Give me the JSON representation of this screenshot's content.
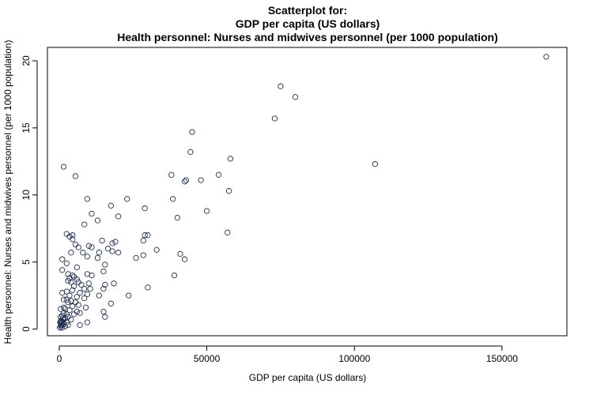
{
  "chart_data": {
    "type": "scatter",
    "title_lines": [
      "Scatterplot for:",
      "GDP per capita (US dollars)",
      "Health personnel: Nurses and midwives personnel (per 1000 population)"
    ],
    "xlabel": "GDP per capita (US dollars)",
    "ylabel": "Health personnel: Nurses and midwives personnel (per 1000 population)",
    "xlim": [
      -4000,
      172000
    ],
    "ylim": [
      -0.5,
      21
    ],
    "xticks": [
      0,
      50000,
      100000,
      150000
    ],
    "xtick_labels": [
      "0",
      "50000",
      "100000",
      "150000"
    ],
    "yticks": [
      0,
      5,
      10,
      15,
      20
    ],
    "ytick_labels": [
      "0",
      "5",
      "10",
      "15",
      "20"
    ],
    "grid": false,
    "legend": null,
    "marker_color": "#1f2f4f",
    "points": [
      [
        165000,
        20.3
      ],
      [
        75000,
        18.1
      ],
      [
        80000,
        17.3
      ],
      [
        73000,
        15.7
      ],
      [
        45000,
        14.7
      ],
      [
        44500,
        13.2
      ],
      [
        58000,
        12.7
      ],
      [
        107000,
        12.3
      ],
      [
        1500,
        12.1
      ],
      [
        54000,
        11.5
      ],
      [
        38000,
        11.5
      ],
      [
        5500,
        11.4
      ],
      [
        48000,
        11.1
      ],
      [
        43000,
        11.1
      ],
      [
        42500,
        11.0
      ],
      [
        57500,
        10.3
      ],
      [
        38500,
        9.7
      ],
      [
        23000,
        9.7
      ],
      [
        9500,
        9.7
      ],
      [
        17500,
        9.2
      ],
      [
        29000,
        9.0
      ],
      [
        50000,
        8.8
      ],
      [
        11000,
        8.6
      ],
      [
        20000,
        8.4
      ],
      [
        40000,
        8.3
      ],
      [
        13000,
        8.1
      ],
      [
        8500,
        7.8
      ],
      [
        57000,
        7.2
      ],
      [
        2500,
        7.1
      ],
      [
        4500,
        7.0
      ],
      [
        3500,
        6.9
      ],
      [
        30000,
        7.0
      ],
      [
        29000,
        7.0
      ],
      [
        4500,
        6.7
      ],
      [
        14500,
        6.6
      ],
      [
        28500,
        6.6
      ],
      [
        19000,
        6.5
      ],
      [
        18000,
        6.4
      ],
      [
        5500,
        6.3
      ],
      [
        10000,
        6.2
      ],
      [
        6500,
        6.1
      ],
      [
        11000,
        6.1
      ],
      [
        16500,
        6.0
      ],
      [
        18000,
        5.8
      ],
      [
        33000,
        5.9
      ],
      [
        4000,
        5.7
      ],
      [
        13500,
        5.7
      ],
      [
        8000,
        5.7
      ],
      [
        20000,
        5.7
      ],
      [
        41000,
        5.6
      ],
      [
        28500,
        5.5
      ],
      [
        9500,
        5.4
      ],
      [
        13000,
        5.3
      ],
      [
        26000,
        5.3
      ],
      [
        42500,
        5.2
      ],
      [
        1000,
        5.2
      ],
      [
        2500,
        4.9
      ],
      [
        15500,
        4.8
      ],
      [
        6000,
        4.6
      ],
      [
        1000,
        4.4
      ],
      [
        15000,
        4.3
      ],
      [
        3000,
        4.1
      ],
      [
        4500,
        4.0
      ],
      [
        9500,
        4.1
      ],
      [
        11000,
        4.0
      ],
      [
        39000,
        4.0
      ],
      [
        5000,
        3.9
      ],
      [
        3500,
        3.8
      ],
      [
        6000,
        3.7
      ],
      [
        4000,
        3.5
      ],
      [
        3000,
        3.6
      ],
      [
        6500,
        3.5
      ],
      [
        7500,
        3.3
      ],
      [
        10000,
        3.4
      ],
      [
        18500,
        3.4
      ],
      [
        15500,
        3.3
      ],
      [
        15000,
        3.0
      ],
      [
        30000,
        3.1
      ],
      [
        5000,
        3.2
      ],
      [
        8500,
        3.0
      ],
      [
        10500,
        3.0
      ],
      [
        4500,
        2.9
      ],
      [
        2500,
        2.8
      ],
      [
        7000,
        2.7
      ],
      [
        1000,
        2.7
      ],
      [
        9500,
        2.6
      ],
      [
        3500,
        2.5
      ],
      [
        23500,
        2.5
      ],
      [
        6000,
        2.4
      ],
      [
        13500,
        2.5
      ],
      [
        8500,
        2.3
      ],
      [
        1500,
        2.2
      ],
      [
        2500,
        2.2
      ],
      [
        4000,
        2.1
      ],
      [
        5500,
        2.0
      ],
      [
        3000,
        2.0
      ],
      [
        17500,
        1.9
      ],
      [
        6500,
        1.8
      ],
      [
        4500,
        1.7
      ],
      [
        1500,
        1.6
      ],
      [
        9000,
        1.6
      ],
      [
        2000,
        1.5
      ],
      [
        500,
        1.5
      ],
      [
        3500,
        1.4
      ],
      [
        6000,
        1.3
      ],
      [
        15000,
        1.3
      ],
      [
        1500,
        1.2
      ],
      [
        5000,
        1.1
      ],
      [
        2500,
        1.1
      ],
      [
        7000,
        1.2
      ],
      [
        1000,
        1.0
      ],
      [
        3000,
        0.9
      ],
      [
        500,
        0.9
      ],
      [
        15500,
        0.9
      ],
      [
        2000,
        0.8
      ],
      [
        1500,
        0.7
      ],
      [
        4000,
        0.7
      ],
      [
        500,
        0.6
      ],
      [
        1000,
        0.5
      ],
      [
        9500,
        0.5
      ],
      [
        2500,
        0.5
      ],
      [
        500,
        0.4
      ],
      [
        1500,
        0.4
      ],
      [
        3000,
        0.3
      ],
      [
        7000,
        0.3
      ],
      [
        1000,
        0.3
      ],
      [
        500,
        0.2
      ],
      [
        2000,
        0.2
      ],
      [
        200,
        0.1
      ],
      [
        1000,
        0.1
      ],
      [
        800,
        0.6
      ],
      [
        600,
        0.3
      ],
      [
        300,
        0.5
      ],
      [
        1200,
        0.8
      ]
    ]
  }
}
